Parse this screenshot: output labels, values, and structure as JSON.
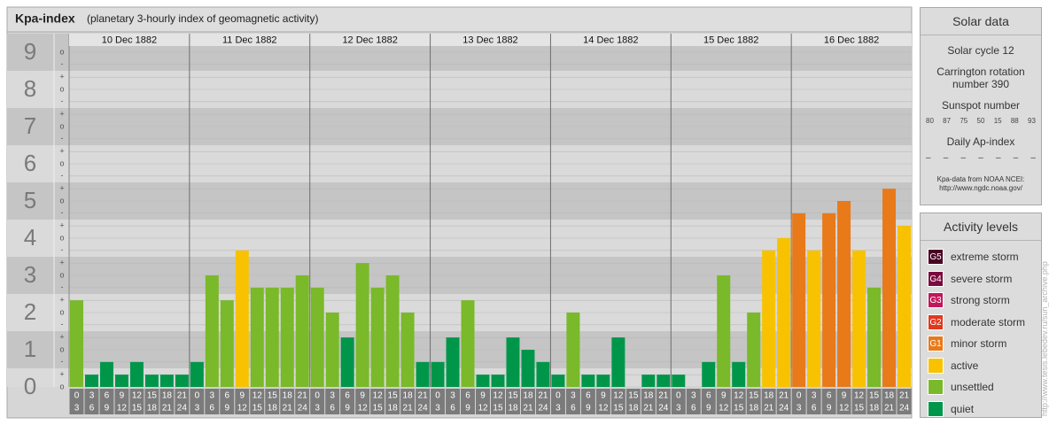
{
  "chart_data": {
    "type": "bar",
    "title": "Kpa-index",
    "subtitle": "(planetary 3-hourly index of geomagnetic activity)",
    "days": [
      "10 Dec 1882",
      "11 Dec 1882",
      "12 Dec 1882",
      "13 Dec 1882",
      "14 Dec 1882",
      "15 Dec 1882",
      "16 Dec 1882"
    ],
    "interval_starts": [
      0,
      3,
      6,
      9,
      12,
      15,
      18,
      21
    ],
    "interval_ends": [
      3,
      6,
      9,
      12,
      15,
      18,
      21,
      24
    ],
    "values": [
      2.33,
      0.33,
      0.67,
      0.33,
      0.67,
      0.33,
      0.33,
      0.33,
      0.67,
      3,
      2.33,
      3.67,
      2.67,
      2.67,
      2.67,
      3,
      2.67,
      2,
      1.33,
      3.33,
      2.67,
      3,
      2,
      0.67,
      0.67,
      1.33,
      2.33,
      0.33,
      0.33,
      1.33,
      1,
      0.67,
      0.33,
      2,
      0.33,
      0.33,
      1.33,
      0,
      0.33,
      0.33,
      0.33,
      0,
      0.67,
      3,
      0.67,
      2,
      3.67,
      4,
      4.67,
      3.67,
      4.67,
      5,
      3.67,
      2.67,
      5.33,
      4.33
    ],
    "colors": [
      "#7ab929",
      "#00964a",
      "#00964a",
      "#00964a",
      "#00964a",
      "#00964a",
      "#00964a",
      "#00964a",
      "#00964a",
      "#7ab929",
      "#7ab929",
      "#f8c200",
      "#7ab929",
      "#7ab929",
      "#7ab929",
      "#7ab929",
      "#7ab929",
      "#7ab929",
      "#00964a",
      "#7ab929",
      "#7ab929",
      "#7ab929",
      "#7ab929",
      "#00964a",
      "#00964a",
      "#00964a",
      "#7ab929",
      "#00964a",
      "#00964a",
      "#00964a",
      "#00964a",
      "#00964a",
      "#00964a",
      "#7ab929",
      "#00964a",
      "#00964a",
      "#00964a",
      "#00964a",
      "#00964a",
      "#00964a",
      "#00964a",
      "#00964a",
      "#00964a",
      "#7ab929",
      "#00964a",
      "#7ab929",
      "#f8c200",
      "#f8c200",
      "#e87a1a",
      "#f8c200",
      "#e87a1a",
      "#e87a1a",
      "#f8c200",
      "#7ab929",
      "#e87a1a",
      "#f8c200"
    ],
    "ylim": [
      0,
      9.5
    ],
    "yticks": [
      0,
      1,
      2,
      3,
      4,
      5,
      6,
      7,
      8,
      9
    ],
    "minor_ticks": [
      {
        "value": 0,
        "label": "o"
      },
      {
        "value": 0.33,
        "label": "+"
      },
      {
        "value": 0.67,
        "label": "-"
      },
      {
        "value": 1,
        "label": "o"
      },
      {
        "value": 1.33,
        "label": "+"
      },
      {
        "value": 1.67,
        "label": "-"
      },
      {
        "value": 2,
        "label": "o"
      },
      {
        "value": 2.33,
        "label": "+"
      },
      {
        "value": 2.67,
        "label": "-"
      },
      {
        "value": 3,
        "label": "o"
      },
      {
        "value": 3.33,
        "label": "+"
      },
      {
        "value": 3.67,
        "label": "-"
      },
      {
        "value": 4,
        "label": "o"
      },
      {
        "value": 4.33,
        "label": "+"
      },
      {
        "value": 4.67,
        "label": "-"
      },
      {
        "value": 5,
        "label": "o"
      },
      {
        "value": 5.33,
        "label": "+"
      },
      {
        "value": 5.67,
        "label": "-"
      },
      {
        "value": 6,
        "label": "o"
      },
      {
        "value": 6.33,
        "label": "+"
      },
      {
        "value": 6.67,
        "label": "-"
      },
      {
        "value": 7,
        "label": "o"
      },
      {
        "value": 7.33,
        "label": "+"
      },
      {
        "value": 7.67,
        "label": "-"
      },
      {
        "value": 8,
        "label": "o"
      },
      {
        "value": 8.33,
        "label": "+"
      },
      {
        "value": 8.67,
        "label": "-"
      },
      {
        "value": 9,
        "label": "o"
      }
    ]
  },
  "solar_data": {
    "title": "Solar data",
    "solar_cycle": "Solar cycle 12",
    "carrington": "Carrington rotation number 390",
    "sunspot_label": "Sunspot number",
    "sunspot_numbers": [
      80,
      87,
      75,
      50,
      15,
      88,
      93
    ],
    "ap_label": "Daily Ap-index",
    "ap_values": [
      "–",
      "–",
      "–",
      "–",
      "–",
      "–",
      "–"
    ],
    "source": "Kpa-data from NOAA NCEI:",
    "source_url": "http://www.ngdc.noaa.gov/"
  },
  "activity_levels": {
    "title": "Activity levels",
    "levels": [
      {
        "badge": "G5",
        "label": "extreme storm",
        "color": "#4a0022"
      },
      {
        "badge": "G4",
        "label": "severe storm",
        "color": "#7a0a3e"
      },
      {
        "badge": "G3",
        "label": "strong storm",
        "color": "#c0185c"
      },
      {
        "badge": "G2",
        "label": "moderate storm",
        "color": "#e0391e"
      },
      {
        "badge": "G1",
        "label": "minor storm",
        "color": "#e87a1a"
      },
      {
        "label": "active",
        "color": "#f8c200"
      },
      {
        "label": "unsettled",
        "color": "#7ab929"
      },
      {
        "label": "quiet",
        "color": "#00964a"
      }
    ]
  },
  "watermark": "http://www.tesis.lebedev.ru/sun_archive.php"
}
